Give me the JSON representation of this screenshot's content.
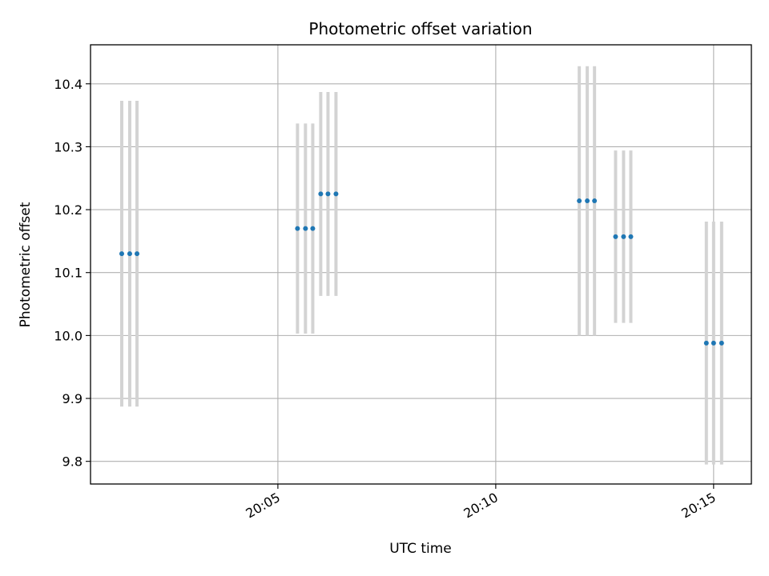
{
  "chart_data": {
    "type": "scatter",
    "title": "Photometric offset variation",
    "xlabel": "UTC time",
    "ylabel": "Photometric offset",
    "x_unit": "time (HH:MM:SS, UTC)",
    "xlim": [
      "20:00:42",
      "20:15:52"
    ],
    "ylim": [
      9.764,
      10.462
    ],
    "grid": true,
    "x_ticks": [
      "20:05",
      "20:10",
      "20:15"
    ],
    "y_ticks": [
      9.8,
      9.9,
      10.0,
      10.1,
      10.2,
      10.3,
      10.4
    ],
    "marker_color": "#1f77b4",
    "errorbar_color": "#d3d3d3",
    "points": [
      {
        "t": "20:01:25",
        "y": 10.13,
        "yerr": 0.243
      },
      {
        "t": "20:01:36",
        "y": 10.13,
        "yerr": 0.243
      },
      {
        "t": "20:01:46",
        "y": 10.13,
        "yerr": 0.243
      },
      {
        "t": "20:05:27",
        "y": 10.17,
        "yerr": 0.167
      },
      {
        "t": "20:05:38",
        "y": 10.17,
        "yerr": 0.167
      },
      {
        "t": "20:05:48",
        "y": 10.17,
        "yerr": 0.167
      },
      {
        "t": "20:05:59",
        "y": 10.225,
        "yerr": 0.162
      },
      {
        "t": "20:06:09",
        "y": 10.225,
        "yerr": 0.162
      },
      {
        "t": "20:06:20",
        "y": 10.225,
        "yerr": 0.162
      },
      {
        "t": "20:11:55",
        "y": 10.214,
        "yerr": 0.214
      },
      {
        "t": "20:12:06",
        "y": 10.214,
        "yerr": 0.214
      },
      {
        "t": "20:12:16",
        "y": 10.214,
        "yerr": 0.214
      },
      {
        "t": "20:12:45",
        "y": 10.157,
        "yerr": 0.137
      },
      {
        "t": "20:12:56",
        "y": 10.157,
        "yerr": 0.137
      },
      {
        "t": "20:13:06",
        "y": 10.157,
        "yerr": 0.137
      },
      {
        "t": "20:14:50",
        "y": 9.988,
        "yerr": 0.193
      },
      {
        "t": "20:15:00",
        "y": 9.988,
        "yerr": 0.193
      },
      {
        "t": "20:15:11",
        "y": 9.988,
        "yerr": 0.193
      }
    ]
  }
}
